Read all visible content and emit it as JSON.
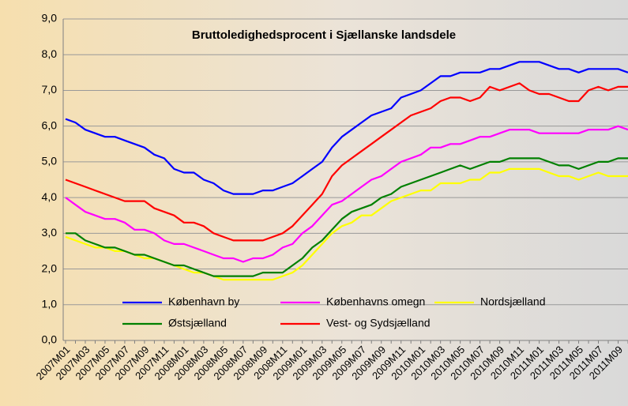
{
  "chart_data": {
    "type": "line",
    "title": "Bruttoledighedsprocent i Sjællanske landsdele",
    "categories": [
      "2007M01",
      null,
      "2007M03",
      null,
      "2007M05",
      null,
      "2007M07",
      null,
      "2007M09",
      null,
      "2007M11",
      null,
      "2008M01",
      null,
      "2008M03",
      null,
      "2008M05",
      null,
      "2008M07",
      null,
      "2008M09",
      null,
      "2008M11",
      null,
      "2009M01",
      null,
      "2009M03",
      null,
      "2009M05",
      null,
      "2009M07",
      null,
      "2009M09",
      null,
      "2009M11",
      null,
      "2010M01",
      null,
      "2010M03",
      null,
      "2010M05",
      null,
      "2010M07",
      null,
      "2010M09",
      null,
      "2010M11",
      null,
      "2011M01",
      null,
      "2011M03",
      null,
      "2011M05",
      null,
      "2011M07",
      null,
      "2011M09",
      null
    ],
    "series": [
      {
        "name": "København by",
        "color": "#0000ff",
        "values": [
          6.2,
          6.1,
          5.9,
          5.8,
          5.7,
          5.7,
          5.6,
          5.5,
          5.4,
          5.2,
          5.1,
          4.8,
          4.7,
          4.7,
          4.5,
          4.4,
          4.2,
          4.1,
          4.1,
          4.1,
          4.2,
          4.2,
          4.3,
          4.4,
          4.6,
          4.8,
          5.0,
          5.4,
          5.7,
          5.9,
          6.1,
          6.3,
          6.4,
          6.5,
          6.8,
          6.9,
          7.0,
          7.2,
          7.4,
          7.4,
          7.5,
          7.5,
          7.5,
          7.6,
          7.6,
          7.7,
          7.8,
          7.8,
          7.8,
          7.7,
          7.6,
          7.6,
          7.5,
          7.6,
          7.6,
          7.6,
          7.6,
          7.5
        ]
      },
      {
        "name": "Københavns omegn",
        "color": "#ff00ff",
        "values": [
          4.0,
          3.8,
          3.6,
          3.5,
          3.4,
          3.4,
          3.3,
          3.1,
          3.1,
          3.0,
          2.8,
          2.7,
          2.7,
          2.6,
          2.5,
          2.4,
          2.3,
          2.3,
          2.2,
          2.3,
          2.3,
          2.4,
          2.6,
          2.7,
          3.0,
          3.2,
          3.5,
          3.8,
          3.9,
          4.1,
          4.3,
          4.5,
          4.6,
          4.8,
          5.0,
          5.1,
          5.2,
          5.4,
          5.4,
          5.5,
          5.5,
          5.6,
          5.7,
          5.7,
          5.8,
          5.9,
          5.9,
          5.9,
          5.8,
          5.8,
          5.8,
          5.8,
          5.8,
          5.9,
          5.9,
          5.9,
          6.0,
          5.9
        ]
      },
      {
        "name": "Nordsjælland",
        "color": "#ffff00",
        "values": [
          2.9,
          2.8,
          2.7,
          2.6,
          2.6,
          2.5,
          2.5,
          2.4,
          2.3,
          2.3,
          2.2,
          2.1,
          2.0,
          1.9,
          1.9,
          1.8,
          1.7,
          1.7,
          1.7,
          1.7,
          1.7,
          1.7,
          1.8,
          1.9,
          2.1,
          2.4,
          2.7,
          3.0,
          3.2,
          3.3,
          3.5,
          3.5,
          3.7,
          3.9,
          4.0,
          4.1,
          4.2,
          4.2,
          4.4,
          4.4,
          4.4,
          4.5,
          4.5,
          4.7,
          4.7,
          4.8,
          4.8,
          4.8,
          4.8,
          4.7,
          4.6,
          4.6,
          4.5,
          4.6,
          4.7,
          4.6,
          4.6,
          4.6
        ]
      },
      {
        "name": "Østsjælland",
        "color": "#008000",
        "values": [
          3.0,
          3.0,
          2.8,
          2.7,
          2.6,
          2.6,
          2.5,
          2.4,
          2.4,
          2.3,
          2.2,
          2.1,
          2.1,
          2.0,
          1.9,
          1.8,
          1.8,
          1.8,
          1.8,
          1.8,
          1.9,
          1.9,
          1.9,
          2.1,
          2.3,
          2.6,
          2.8,
          3.1,
          3.4,
          3.6,
          3.7,
          3.8,
          4.0,
          4.1,
          4.3,
          4.4,
          4.5,
          4.6,
          4.7,
          4.8,
          4.9,
          4.8,
          4.9,
          5.0,
          5.0,
          5.1,
          5.1,
          5.1,
          5.1,
          5.0,
          4.9,
          4.9,
          4.8,
          4.9,
          5.0,
          5.0,
          5.1,
          5.1
        ]
      },
      {
        "name": "Vest- og Sydsjælland",
        "color": "#ff0000",
        "values": [
          4.5,
          4.4,
          4.3,
          4.2,
          4.1,
          4.0,
          3.9,
          3.9,
          3.9,
          3.7,
          3.6,
          3.5,
          3.3,
          3.3,
          3.2,
          3.0,
          2.9,
          2.8,
          2.8,
          2.8,
          2.8,
          2.9,
          3.0,
          3.2,
          3.5,
          3.8,
          4.1,
          4.6,
          4.9,
          5.1,
          5.3,
          5.5,
          5.7,
          5.9,
          6.1,
          6.3,
          6.4,
          6.5,
          6.7,
          6.8,
          6.8,
          6.7,
          6.8,
          7.1,
          7.0,
          7.1,
          7.2,
          7.0,
          6.9,
          6.9,
          6.8,
          6.7,
          6.7,
          7.0,
          7.1,
          7.0,
          7.1,
          7.1
        ]
      }
    ],
    "ylim": [
      0,
      9
    ],
    "yticks": [
      {
        "value": 0,
        "label": "0,0"
      },
      {
        "value": 1,
        "label": "1,0"
      },
      {
        "value": 2,
        "label": "2,0"
      },
      {
        "value": 3,
        "label": "3,0"
      },
      {
        "value": 4,
        "label": "4,0"
      },
      {
        "value": 5,
        "label": "5,0"
      },
      {
        "value": 6,
        "label": "6,0"
      },
      {
        "value": 7,
        "label": "7,0"
      },
      {
        "value": 8,
        "label": "8,0"
      },
      {
        "value": 9,
        "label": "9,0"
      }
    ],
    "grid": true,
    "legend": "bottom"
  }
}
